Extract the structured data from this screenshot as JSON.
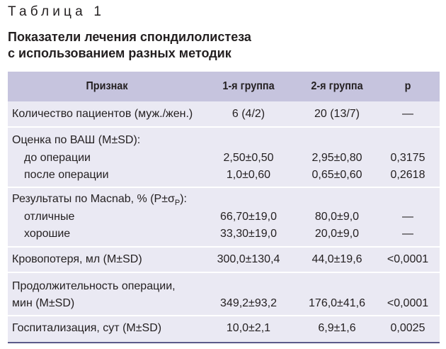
{
  "caption": {
    "label": "Таблица 1",
    "title_line1": "Показатели лечения спондилолистеза",
    "title_line2": "с использованием разных методик"
  },
  "table": {
    "headers": [
      "Признак",
      "1-я группа",
      "2-я группа",
      "p"
    ],
    "rows": {
      "patients": {
        "label": "Количество пациентов (муж./жен.)",
        "g1": "6 (4/2)",
        "g2": "20 (13/7)",
        "p": "—"
      },
      "vas": {
        "label": "Оценка по ВАШ (M±SD):",
        "before": {
          "label": "до операции",
          "g1": "2,50±0,50",
          "g2": "2,95±0,80",
          "p": "0,3175"
        },
        "after": {
          "label": "после операции",
          "g1": "1,0±0,60",
          "g2": "0,65±0,60",
          "p": "0,2618"
        }
      },
      "macnab": {
        "label_pre": "Результаты по Macnab, % (P±σ",
        "label_sub": "P",
        "label_post": "):",
        "excellent": {
          "label": "отличные",
          "g1": "66,70±19,0",
          "g2": "80,0±9,0",
          "p": "—"
        },
        "good": {
          "label": "хорошие",
          "g1": "33,30±19,0",
          "g2": "20,0±9,0",
          "p": "—"
        }
      },
      "blood_loss": {
        "label": "Кровопотеря, мл (M±SD)",
        "g1": "300,0±130,4",
        "g2": "44,0±19,6",
        "p": "<0,0001"
      },
      "duration": {
        "label_line1": "Продолжительность операции,",
        "label_line2": "мин (M±SD)",
        "g1": "349,2±93,2",
        "g2": "176,0±41,6",
        "p": "<0,0001"
      },
      "hospital": {
        "label": "Госпитализация, сут (M±SD)",
        "g1": "10,0±2,1",
        "g2": "6,9±1,6",
        "p": "0,0025"
      }
    }
  },
  "colors": {
    "header_bg": "#c6c4de",
    "body_bg": "#eae9f3",
    "bottom_rule": "#5a5a8a",
    "text": "#231f20"
  }
}
